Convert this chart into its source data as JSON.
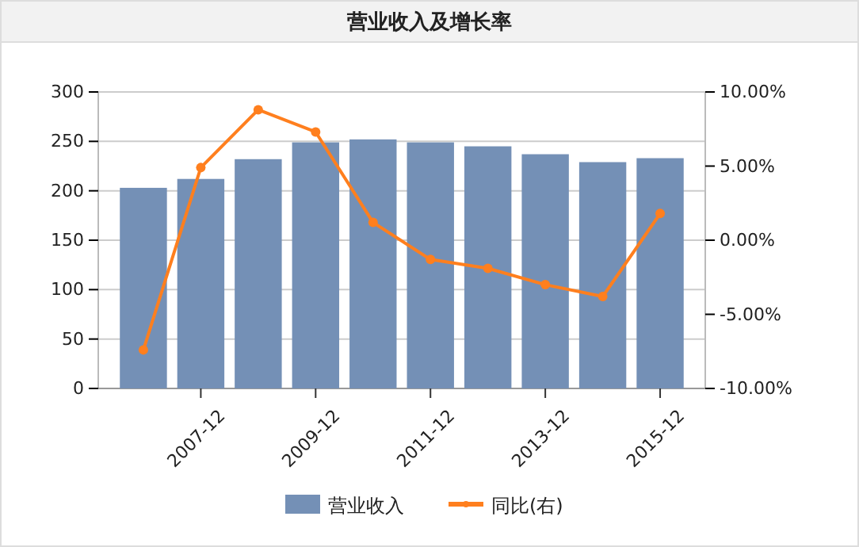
{
  "chart_data": {
    "type": "bar",
    "title": "营业收入及增长率",
    "categories": [
      null,
      "2007-12",
      null,
      "2009-12",
      null,
      "2011-12",
      null,
      "2013-12",
      null,
      "2015-12"
    ],
    "series": [
      {
        "name": "营业收入",
        "color": "#7490b6",
        "values": [
          203,
          212,
          232,
          249,
          252,
          249,
          245,
          237,
          229,
          233
        ]
      },
      {
        "name": "同比(右)",
        "type": "line",
        "axis": "y2",
        "color": "#ff7f1e",
        "marker": "circle",
        "values": [
          -7.4,
          4.9,
          8.8,
          7.3,
          1.2,
          -1.3,
          -1.9,
          -3,
          -3.8,
          1.8
        ]
      }
    ],
    "ylim": [
      0,
      300
    ],
    "yticks": [
      0,
      50,
      100,
      150,
      200,
      250,
      300
    ],
    "y2lim": [
      -10,
      10
    ],
    "y2ticks": [
      {
        "value": -10,
        "label": "-10.00%"
      },
      {
        "value": -5,
        "label": "-5.00%"
      },
      {
        "value": 0,
        "label": "0.00%"
      },
      {
        "value": 5,
        "label": "5.00%"
      },
      {
        "value": 10,
        "label": "10.00%"
      }
    ],
    "grid": "y",
    "legend": "bottom"
  }
}
